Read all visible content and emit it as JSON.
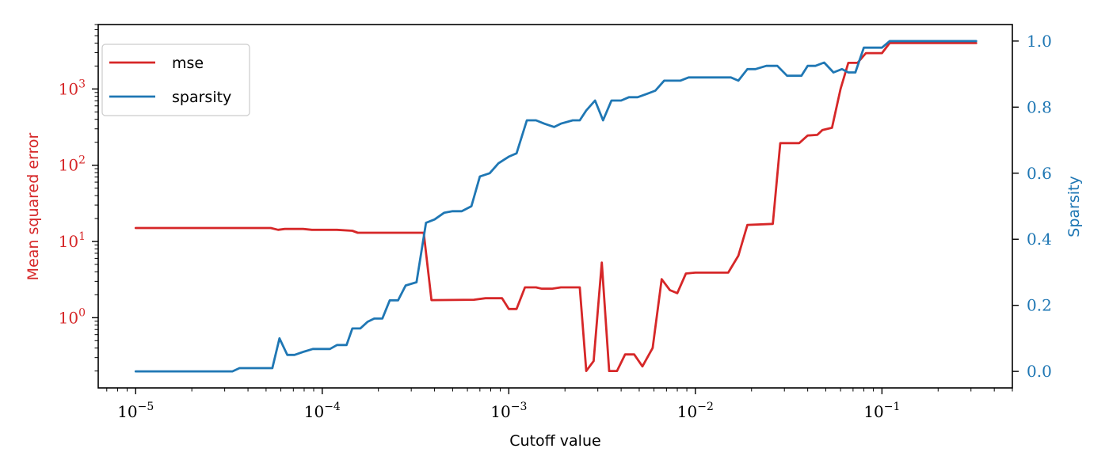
{
  "chart_data": {
    "type": "line",
    "xlabel": "Cutoff value",
    "x_scale": "log",
    "xlim": [
      6.3e-06,
      0.5
    ],
    "x_ticks": [
      {
        "value": 1e-05,
        "base": "10",
        "exp": "−5"
      },
      {
        "value": 0.0001,
        "base": "10",
        "exp": "−4"
      },
      {
        "value": 0.001,
        "base": "10",
        "exp": "−3"
      },
      {
        "value": 0.01,
        "base": "10",
        "exp": "−2"
      },
      {
        "value": 0.1,
        "base": "10",
        "exp": "−1"
      }
    ],
    "left_axis": {
      "label": "Mean squared error",
      "scale": "log",
      "ylim": [
        0.12,
        7000
      ],
      "ticks": [
        {
          "value": 1,
          "base": "10",
          "exp": "0"
        },
        {
          "value": 10,
          "base": "10",
          "exp": "1"
        },
        {
          "value": 100,
          "base": "10",
          "exp": "2"
        },
        {
          "value": 1000,
          "base": "10",
          "exp": "3"
        }
      ],
      "color": "#d62728"
    },
    "right_axis": {
      "label": "Sparsity",
      "scale": "linear",
      "ylim": [
        -0.05,
        1.05
      ],
      "ticks": [
        {
          "value": 0.0,
          "label": "0.0"
        },
        {
          "value": 0.2,
          "label": "0.2"
        },
        {
          "value": 0.4,
          "label": "0.4"
        },
        {
          "value": 0.6,
          "label": "0.6"
        },
        {
          "value": 0.8,
          "label": "0.8"
        },
        {
          "value": 1.0,
          "label": "1.0"
        }
      ],
      "color": "#1f77b4"
    },
    "legend": {
      "position": "top-left"
    },
    "series": [
      {
        "name": "mse",
        "axis": "left",
        "color": "#d62728",
        "points": [
          [
            1e-05,
            15
          ],
          [
            5.3e-05,
            15
          ],
          [
            5.8e-05,
            14.2
          ],
          [
            6.3e-05,
            14.6
          ],
          [
            7.9e-05,
            14.6
          ],
          [
            8.8e-05,
            14.2
          ],
          [
            0.00012,
            14.2
          ],
          [
            0.000145,
            13.8
          ],
          [
            0.000155,
            13.0
          ],
          [
            0.00035,
            13.0
          ],
          [
            0.000385,
            1.7
          ],
          [
            0.00065,
            1.72
          ],
          [
            0.00075,
            1.8
          ],
          [
            0.00092,
            1.8
          ],
          [
            0.001,
            1.3
          ],
          [
            0.0011,
            1.3
          ],
          [
            0.00122,
            2.5
          ],
          [
            0.0014,
            2.5
          ],
          [
            0.0015,
            2.4
          ],
          [
            0.0017,
            2.4
          ],
          [
            0.0019,
            2.5
          ],
          [
            0.0024,
            2.5
          ],
          [
            0.0026,
            0.2
          ],
          [
            0.00285,
            0.27
          ],
          [
            0.00315,
            5.3
          ],
          [
            0.00345,
            0.2
          ],
          [
            0.0038,
            0.2
          ],
          [
            0.0042,
            0.33
          ],
          [
            0.0047,
            0.33
          ],
          [
            0.0052,
            0.23
          ],
          [
            0.0059,
            0.4
          ],
          [
            0.0066,
            3.2
          ],
          [
            0.0073,
            2.3
          ],
          [
            0.008,
            2.1
          ],
          [
            0.0089,
            3.8
          ],
          [
            0.01,
            3.9
          ],
          [
            0.015,
            3.9
          ],
          [
            0.017,
            6.5
          ],
          [
            0.019,
            16.5
          ],
          [
            0.026,
            17
          ],
          [
            0.0285,
            195
          ],
          [
            0.036,
            195
          ],
          [
            0.04,
            245
          ],
          [
            0.045,
            250
          ],
          [
            0.048,
            290
          ],
          [
            0.054,
            310
          ],
          [
            0.06,
            1000
          ],
          [
            0.066,
            2200
          ],
          [
            0.074,
            2200
          ],
          [
            0.082,
            2950
          ],
          [
            0.092,
            2950
          ],
          [
            0.1,
            2950
          ],
          [
            0.11,
            4000
          ],
          [
            0.32,
            4000
          ]
        ]
      },
      {
        "name": "sparsity",
        "axis": "right",
        "color": "#1f77b4",
        "points": [
          [
            1e-05,
            0.0
          ],
          [
            3.3e-05,
            0.0
          ],
          [
            3.6e-05,
            0.01
          ],
          [
            5.4e-05,
            0.01
          ],
          [
            5.9e-05,
            0.1
          ],
          [
            6.5e-05,
            0.05
          ],
          [
            7.1e-05,
            0.05
          ],
          [
            8e-05,
            0.06
          ],
          [
            8.9e-05,
            0.068
          ],
          [
            0.00011,
            0.068
          ],
          [
            0.00012,
            0.08
          ],
          [
            0.000135,
            0.08
          ],
          [
            0.000145,
            0.13
          ],
          [
            0.00016,
            0.13
          ],
          [
            0.000175,
            0.15
          ],
          [
            0.00019,
            0.16
          ],
          [
            0.00021,
            0.16
          ],
          [
            0.00023,
            0.215
          ],
          [
            0.000255,
            0.215
          ],
          [
            0.00028,
            0.26
          ],
          [
            0.00032,
            0.27
          ],
          [
            0.00036,
            0.45
          ],
          [
            0.0004,
            0.46
          ],
          [
            0.00045,
            0.48
          ],
          [
            0.0005,
            0.485
          ],
          [
            0.00056,
            0.485
          ],
          [
            0.00063,
            0.5
          ],
          [
            0.0007,
            0.59
          ],
          [
            0.00079,
            0.6
          ],
          [
            0.00088,
            0.63
          ],
          [
            0.001,
            0.65
          ],
          [
            0.0011,
            0.66
          ],
          [
            0.00125,
            0.76
          ],
          [
            0.0014,
            0.76
          ],
          [
            0.00155,
            0.75
          ],
          [
            0.00175,
            0.74
          ],
          [
            0.0019,
            0.75
          ],
          [
            0.0022,
            0.76
          ],
          [
            0.0024,
            0.76
          ],
          [
            0.0026,
            0.79
          ],
          [
            0.0029,
            0.82
          ],
          [
            0.0032,
            0.76
          ],
          [
            0.00355,
            0.82
          ],
          [
            0.004,
            0.82
          ],
          [
            0.0044,
            0.83
          ],
          [
            0.0049,
            0.83
          ],
          [
            0.0055,
            0.84
          ],
          [
            0.0061,
            0.85
          ],
          [
            0.0068,
            0.88
          ],
          [
            0.0083,
            0.88
          ],
          [
            0.0092,
            0.89
          ],
          [
            0.0155,
            0.89
          ],
          [
            0.017,
            0.88
          ],
          [
            0.019,
            0.915
          ],
          [
            0.021,
            0.915
          ],
          [
            0.024,
            0.925
          ],
          [
            0.0275,
            0.925
          ],
          [
            0.031,
            0.895
          ],
          [
            0.037,
            0.895
          ],
          [
            0.04,
            0.925
          ],
          [
            0.044,
            0.925
          ],
          [
            0.049,
            0.935
          ],
          [
            0.055,
            0.905
          ],
          [
            0.061,
            0.915
          ],
          [
            0.066,
            0.905
          ],
          [
            0.072,
            0.905
          ],
          [
            0.08,
            0.98
          ],
          [
            0.1,
            0.98
          ],
          [
            0.11,
            1.0
          ],
          [
            0.32,
            1.0
          ]
        ]
      }
    ]
  }
}
